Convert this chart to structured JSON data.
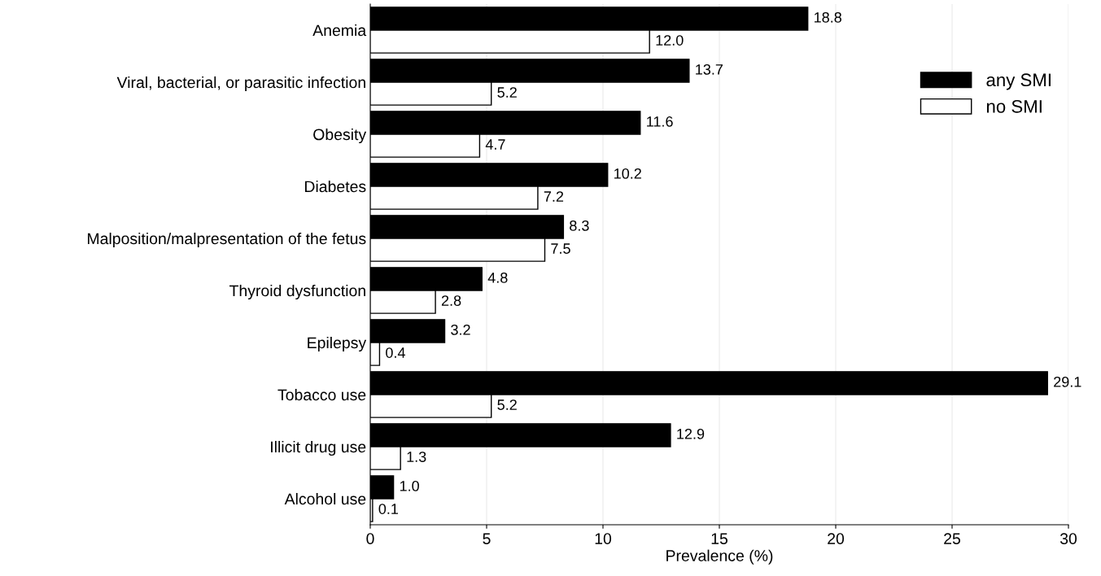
{
  "chart_data": {
    "type": "bar",
    "orientation": "horizontal",
    "xlabel": "Prevalence (%)",
    "categories": [
      "Anemia",
      "Viral, bacterial, or parasitic infection",
      "Obesity",
      "Diabetes",
      "Malposition/malpresentation of the fetus",
      "Thyroid dysfunction",
      "Epilepsy",
      "Tobacco use",
      "Illicit drug use",
      "Alcohol use"
    ],
    "series": [
      {
        "name": "any SMI",
        "color": "#000000",
        "values": [
          18.8,
          13.7,
          11.6,
          10.2,
          8.3,
          4.8,
          3.2,
          29.1,
          12.9,
          1.0
        ],
        "value_labels": [
          "18.8",
          "13.7",
          "11.6",
          "10.2",
          "8.3",
          "4.8",
          "3.2",
          "29.1",
          "12.9",
          "1.0"
        ]
      },
      {
        "name": "no SMI",
        "color": "#ffffff",
        "values": [
          12.0,
          5.2,
          4.7,
          7.2,
          7.5,
          2.8,
          0.4,
          5.2,
          1.3,
          0.1
        ],
        "value_labels": [
          "12.0",
          "5.2",
          "4.7",
          "7.2",
          "7.5",
          "2.8",
          "0.4",
          "5.2",
          "1.3",
          "0.1"
        ]
      }
    ],
    "xlim": [
      0,
      30
    ],
    "xticks": [
      0,
      5,
      10,
      15,
      20,
      25,
      30
    ],
    "grid": "x",
    "legend": "top right"
  }
}
